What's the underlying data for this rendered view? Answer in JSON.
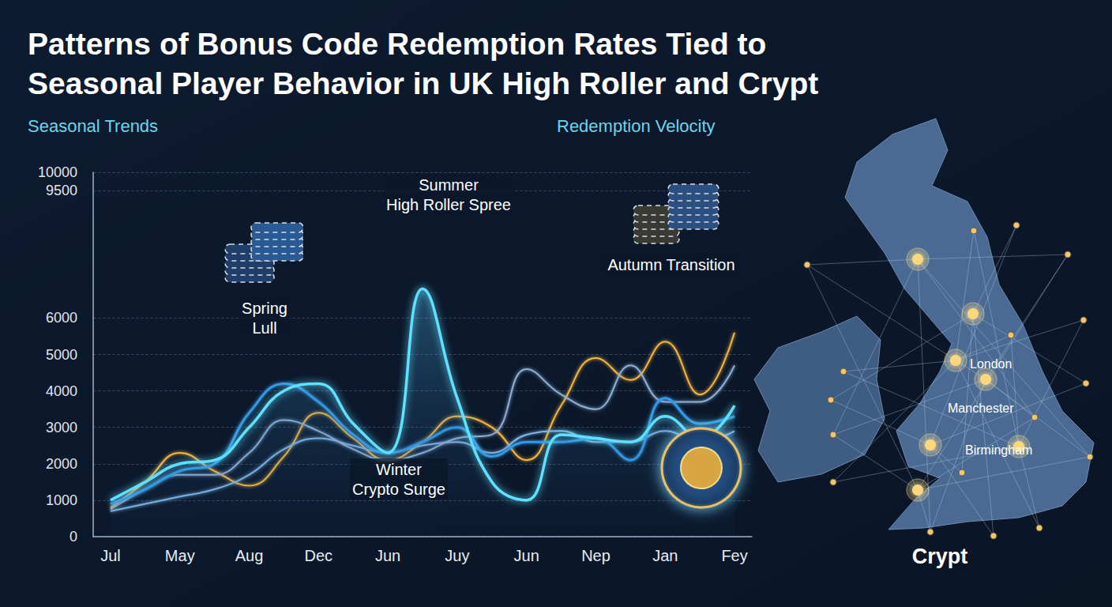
{
  "chart_data": {
    "type": "line",
    "title": "Patterns of Bonus Code Redemption Rates Tied to\nSeasonal Player Behavior in UK High Roller and Crypt",
    "subtitles": [
      "Seasonal Trends",
      "Redemption Velocity"
    ],
    "annotations": [
      {
        "text": "Spring\nLull"
      },
      {
        "text": "Summer\nHigh Roller Spree"
      },
      {
        "text": "Winter\nCrypto Surge"
      },
      {
        "text": "Autumn Transition"
      }
    ],
    "categories": [
      "Jul",
      null,
      "May",
      null,
      "Aug",
      null,
      "Dec",
      null,
      "Jun",
      null,
      "Juy",
      null,
      "Jun",
      null,
      "Nep",
      null,
      "Jan",
      null,
      "Fey"
    ],
    "series": [
      {
        "color": "#f5b63f",
        "type": "line",
        "values": [
          800,
          1500,
          2300,
          1800,
          1400,
          2200,
          3400,
          2700,
          2100,
          2600,
          3300,
          3000,
          2100,
          3600,
          4900,
          4300,
          5350,
          3900,
          5600
        ]
      },
      {
        "color": "#7fb6e6",
        "type": "line",
        "values": [
          700,
          900,
          1100,
          1300,
          1700,
          2400,
          2700,
          2500,
          2300,
          2500,
          2600,
          2300,
          2800,
          2900,
          2600,
          2600,
          2900,
          2600,
          2900
        ]
      },
      {
        "color": "#8fb0d8",
        "type": "line",
        "values": [
          750,
          1300,
          1700,
          1700,
          2300,
          3200,
          2900,
          2400,
          2100,
          2300,
          2700,
          2800,
          4600,
          3900,
          3500,
          4700,
          3700,
          3700,
          4700
        ]
      },
      {
        "color": "#3399e6",
        "type": "line",
        "values": [
          900,
          1300,
          1800,
          2000,
          3400,
          4200,
          3700,
          2800,
          2300,
          2600,
          3000,
          2200,
          2600,
          2600,
          2700,
          2100,
          3800,
          3100,
          3300
        ]
      },
      {
        "color": "#5fe0ff",
        "type": "area",
        "values": [
          1000,
          1500,
          2000,
          2100,
          3000,
          4000,
          4200,
          3100,
          2300,
          6800,
          3800,
          1500,
          1000,
          2800,
          2700,
          2600,
          3300,
          2700,
          3600
        ]
      }
    ],
    "ylim": [
      0,
      10000
    ],
    "yticks": [
      0,
      1000,
      2000,
      3000,
      4000,
      5000,
      6000,
      9500,
      10000
    ],
    "grid": true
  },
  "map": {
    "labels": [
      "London",
      "Manchester",
      "Birmingham"
    ],
    "caption": "Crypt"
  }
}
